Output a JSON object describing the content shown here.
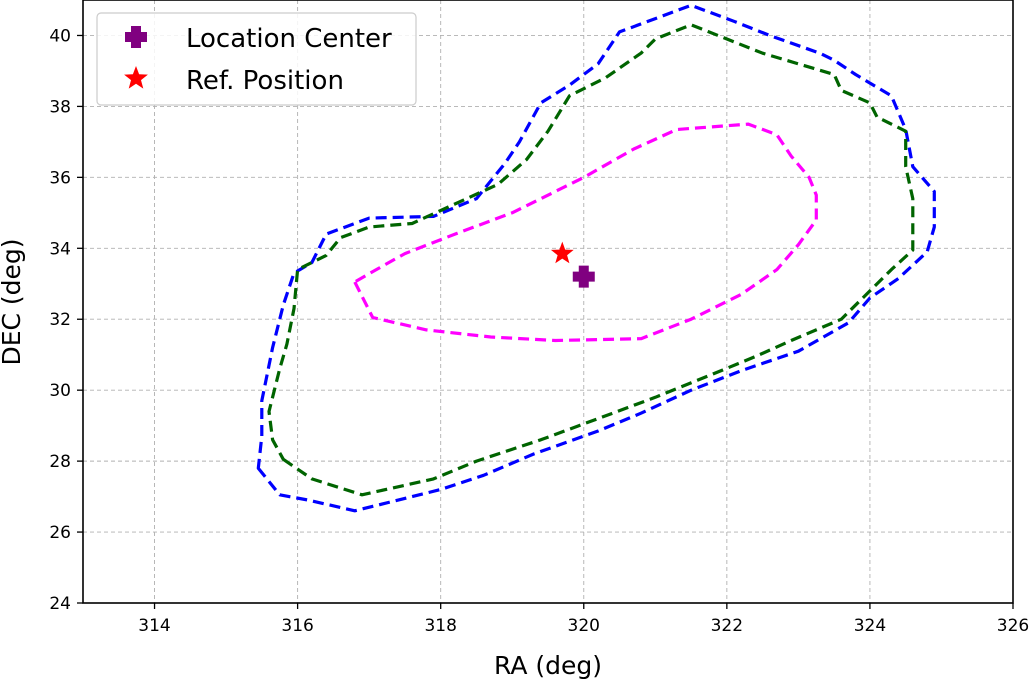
{
  "chart_data": {
    "type": "scatter",
    "xlabel": "RA (deg)",
    "ylabel": "DEC (deg)",
    "xlim": [
      313,
      326
    ],
    "ylim": [
      24,
      41
    ],
    "xticks": [
      314,
      316,
      318,
      320,
      322,
      324,
      326
    ],
    "yticks": [
      24,
      26,
      28,
      30,
      32,
      34,
      36,
      38,
      40
    ],
    "xtick_labels": [
      "314",
      "316",
      "318",
      "320",
      "322",
      "324",
      "326"
    ],
    "ytick_labels": [
      "24",
      "26",
      "28",
      "30",
      "32",
      "34",
      "36",
      "38",
      "40"
    ],
    "grid": true,
    "legend_position": "top-left",
    "legend": [
      {
        "label": "Location Center",
        "marker": "plus",
        "color": "#800080"
      },
      {
        "label": "Ref. Position",
        "marker": "star",
        "color": "#ff0000"
      }
    ],
    "points": [
      {
        "name": "location-center",
        "x": 320.0,
        "y": 33.2,
        "marker": "plus",
        "color": "#800080"
      },
      {
        "name": "ref-position",
        "x": 319.7,
        "y": 33.85,
        "marker": "star",
        "color": "#ff0000"
      }
    ],
    "contours": [
      {
        "name": "contour-outer-blue",
        "color": "#0000ff",
        "points": [
          [
            315.45,
            27.8
          ],
          [
            315.75,
            27.05
          ],
          [
            316.15,
            26.9
          ],
          [
            316.8,
            26.6
          ],
          [
            318.0,
            27.2
          ],
          [
            318.6,
            27.6
          ],
          [
            319.3,
            28.2
          ],
          [
            320.2,
            28.85
          ],
          [
            320.8,
            29.35
          ],
          [
            321.5,
            30.0
          ],
          [
            322.2,
            30.55
          ],
          [
            323.0,
            31.1
          ],
          [
            323.7,
            31.9
          ],
          [
            324.0,
            32.6
          ],
          [
            324.4,
            33.15
          ],
          [
            324.8,
            33.9
          ],
          [
            324.9,
            34.6
          ],
          [
            324.9,
            35.6
          ],
          [
            324.6,
            36.3
          ],
          [
            324.5,
            37.35
          ],
          [
            324.3,
            38.3
          ],
          [
            323.8,
            38.9
          ],
          [
            323.5,
            39.3
          ],
          [
            323.3,
            39.5
          ],
          [
            322.6,
            40.0
          ],
          [
            322.1,
            40.4
          ],
          [
            321.5,
            40.85
          ],
          [
            320.5,
            40.1
          ],
          [
            320.2,
            39.2
          ],
          [
            319.8,
            38.6
          ],
          [
            319.4,
            38.1
          ],
          [
            319.1,
            37.0
          ],
          [
            318.9,
            36.4
          ],
          [
            318.7,
            35.9
          ],
          [
            318.5,
            35.4
          ],
          [
            317.9,
            34.9
          ],
          [
            317.0,
            34.85
          ],
          [
            316.4,
            34.4
          ],
          [
            316.2,
            33.6
          ],
          [
            315.95,
            33.3
          ],
          [
            315.8,
            32.4
          ],
          [
            315.65,
            31.2
          ],
          [
            315.55,
            30.2
          ],
          [
            315.5,
            29.7
          ],
          [
            315.5,
            28.7
          ]
        ]
      },
      {
        "name": "contour-middle-green",
        "color": "#006400",
        "points": [
          [
            315.8,
            28.05
          ],
          [
            316.2,
            27.5
          ],
          [
            316.9,
            27.05
          ],
          [
            317.9,
            27.5
          ],
          [
            318.5,
            28.0
          ],
          [
            319.4,
            28.6
          ],
          [
            320.2,
            29.2
          ],
          [
            321.0,
            29.8
          ],
          [
            321.8,
            30.45
          ],
          [
            322.4,
            30.95
          ],
          [
            322.9,
            31.4
          ],
          [
            323.6,
            32.0
          ],
          [
            324.0,
            32.8
          ],
          [
            324.3,
            33.4
          ],
          [
            324.6,
            33.95
          ],
          [
            324.6,
            35.4
          ],
          [
            324.5,
            36.3
          ],
          [
            324.5,
            37.3
          ],
          [
            324.1,
            37.7
          ],
          [
            324.0,
            38.1
          ],
          [
            323.6,
            38.45
          ],
          [
            323.5,
            38.9
          ],
          [
            322.5,
            39.5
          ],
          [
            321.5,
            40.3
          ],
          [
            321.0,
            39.9
          ],
          [
            320.8,
            39.5
          ],
          [
            320.3,
            38.8
          ],
          [
            319.8,
            38.3
          ],
          [
            319.5,
            37.3
          ],
          [
            319.2,
            36.5
          ],
          [
            318.8,
            35.8
          ],
          [
            317.6,
            34.7
          ],
          [
            317.0,
            34.6
          ],
          [
            316.6,
            34.3
          ],
          [
            316.4,
            33.8
          ],
          [
            316.0,
            33.4
          ],
          [
            315.95,
            32.3
          ],
          [
            315.85,
            31.3
          ],
          [
            315.75,
            30.6
          ],
          [
            315.6,
            29.4
          ],
          [
            315.65,
            28.6
          ]
        ]
      },
      {
        "name": "contour-inner-magenta",
        "color": "#ff00ff",
        "points": [
          [
            316.8,
            33.05
          ],
          [
            317.05,
            32.05
          ],
          [
            317.8,
            31.7
          ],
          [
            318.7,
            31.5
          ],
          [
            319.6,
            31.4
          ],
          [
            320.8,
            31.45
          ],
          [
            321.5,
            32.0
          ],
          [
            322.2,
            32.7
          ],
          [
            322.7,
            33.4
          ],
          [
            323.0,
            34.1
          ],
          [
            323.25,
            34.8
          ],
          [
            323.25,
            35.5
          ],
          [
            323.15,
            36.0
          ],
          [
            322.9,
            36.6
          ],
          [
            322.7,
            37.2
          ],
          [
            322.3,
            37.5
          ],
          [
            321.3,
            37.35
          ],
          [
            320.7,
            36.8
          ],
          [
            320.0,
            36.0
          ],
          [
            319.0,
            35.0
          ],
          [
            318.2,
            34.4
          ],
          [
            317.5,
            33.85
          ],
          [
            317.1,
            33.4
          ]
        ]
      }
    ]
  }
}
